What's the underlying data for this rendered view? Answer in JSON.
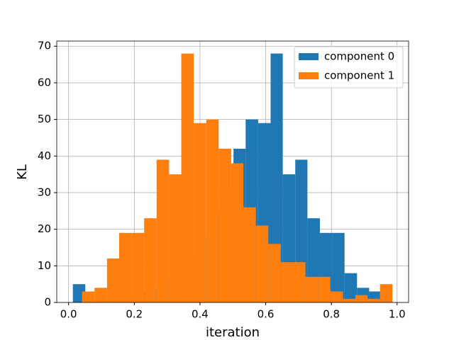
{
  "chart_data": {
    "type": "histogram",
    "xlabel": "iteration",
    "ylabel": "KL",
    "series": [
      {
        "name": "component 0",
        "color": "#1f77b4",
        "bins": [
          0.013,
          0.051,
          0.088,
          0.126,
          0.163,
          0.201,
          0.239,
          0.276,
          0.314,
          0.351,
          0.389,
          0.427,
          0.464,
          0.502,
          0.539,
          0.577,
          0.615,
          0.652,
          0.69,
          0.727,
          0.765,
          0.803,
          0.84,
          0.878,
          0.915,
          0.953
        ],
        "values": [
          5,
          0,
          1,
          1,
          2,
          3,
          4,
          6,
          10,
          12,
          18,
          25,
          30,
          42,
          50,
          49,
          68,
          35,
          39,
          23,
          19,
          19,
          8,
          4,
          3
        ]
      },
      {
        "name": "component 1",
        "color": "#ff7f0e",
        "bins": [
          0.041,
          0.079,
          0.117,
          0.154,
          0.192,
          0.23,
          0.268,
          0.306,
          0.343,
          0.381,
          0.419,
          0.457,
          0.495,
          0.532,
          0.57,
          0.608,
          0.646,
          0.684,
          0.721,
          0.759,
          0.797,
          0.835,
          0.873,
          0.91,
          0.948,
          0.986
        ],
        "values": [
          3,
          4,
          12,
          19,
          19,
          23,
          39,
          35,
          68,
          49,
          50,
          42,
          38,
          26,
          21,
          16,
          11,
          11,
          7,
          7,
          3,
          1,
          2,
          1,
          5
        ]
      }
    ],
    "xlim": [
      -0.036,
      1.035
    ],
    "xticks": [
      {
        "value": 0,
        "label": "0.0"
      },
      0.2,
      0.4,
      0.6,
      0.8,
      {
        "value": 1,
        "label": "1.0"
      }
    ],
    "ylim": [
      0,
      71.4
    ],
    "yticks": [
      0,
      10,
      20,
      30,
      40,
      50,
      60,
      70
    ],
    "grid": true,
    "legend": "upper right"
  }
}
